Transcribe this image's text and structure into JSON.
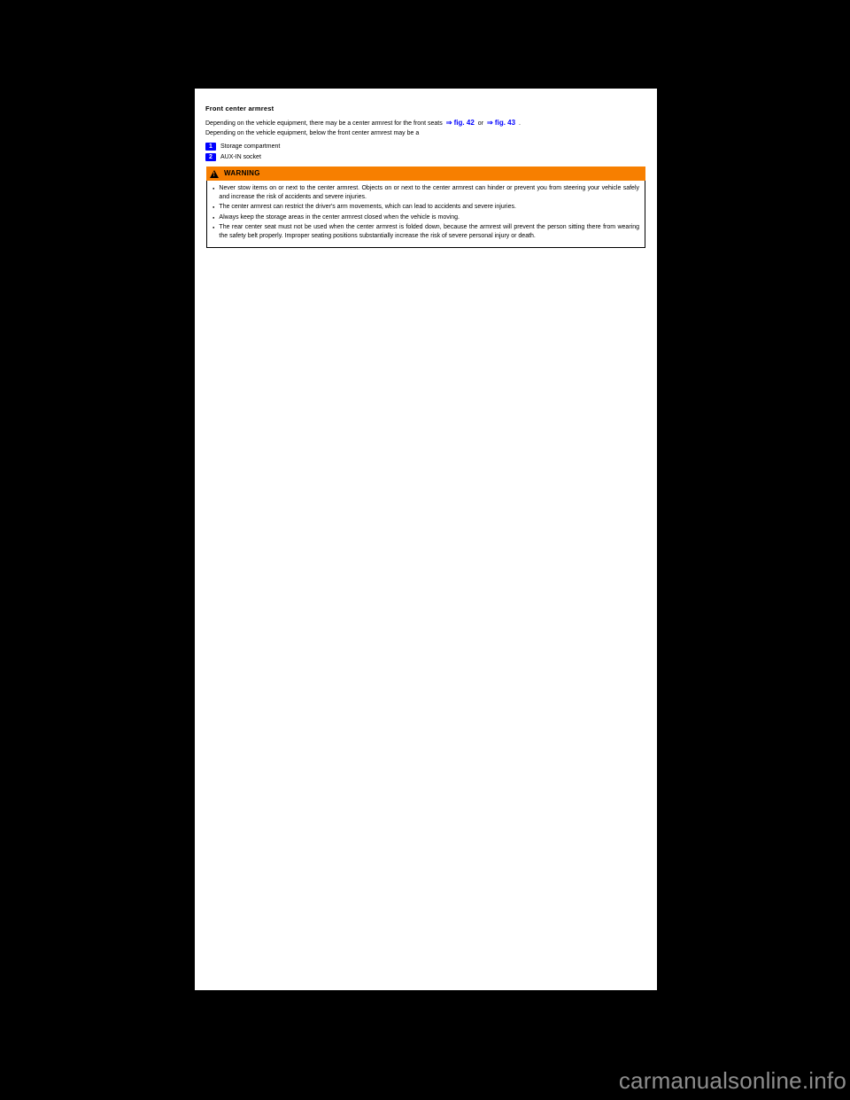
{
  "section": {
    "title": "Front center armrest",
    "intro_prefix": "Depending on the vehicle equipment, there may be a center armrest for the front seats ",
    "fig_link_1": "⇒ fig. 42",
    "intro_or": " or ",
    "fig_link_2": "⇒ fig. 43",
    "intro_suffix": ".",
    "second_line": "Depending on the vehicle equipment, below the front center armrest may be a"
  },
  "legend": [
    {
      "num": "1",
      "text": "Storage compartment"
    },
    {
      "num": "2",
      "text": "AUX-IN socket"
    }
  ],
  "warning": {
    "label": "WARNING",
    "items": [
      "Never stow items on or next to the center armrest. Objects on or next to the center armrest can hinder or prevent you from steering your vehicle safely and increase the risk of accidents and severe injuries.",
      "The center armrest can restrict the driver's arm movements, which can lead to accidents and severe injuries.",
      "Always keep the storage areas in the center armrest closed when the vehicle is moving.",
      "The rear center seat must not be used when the center armrest is folded down, because the armrest will prevent the person sitting there from wearing the safety belt properly. Improper seating positions substantially increase the risk of severe personal injury or death."
    ]
  },
  "watermark": "carmanualsonline.info",
  "colors": {
    "link": "#0000ff",
    "warning_bg": "#f77f00",
    "page_bg": "#ffffff",
    "body_bg": "#000000"
  }
}
